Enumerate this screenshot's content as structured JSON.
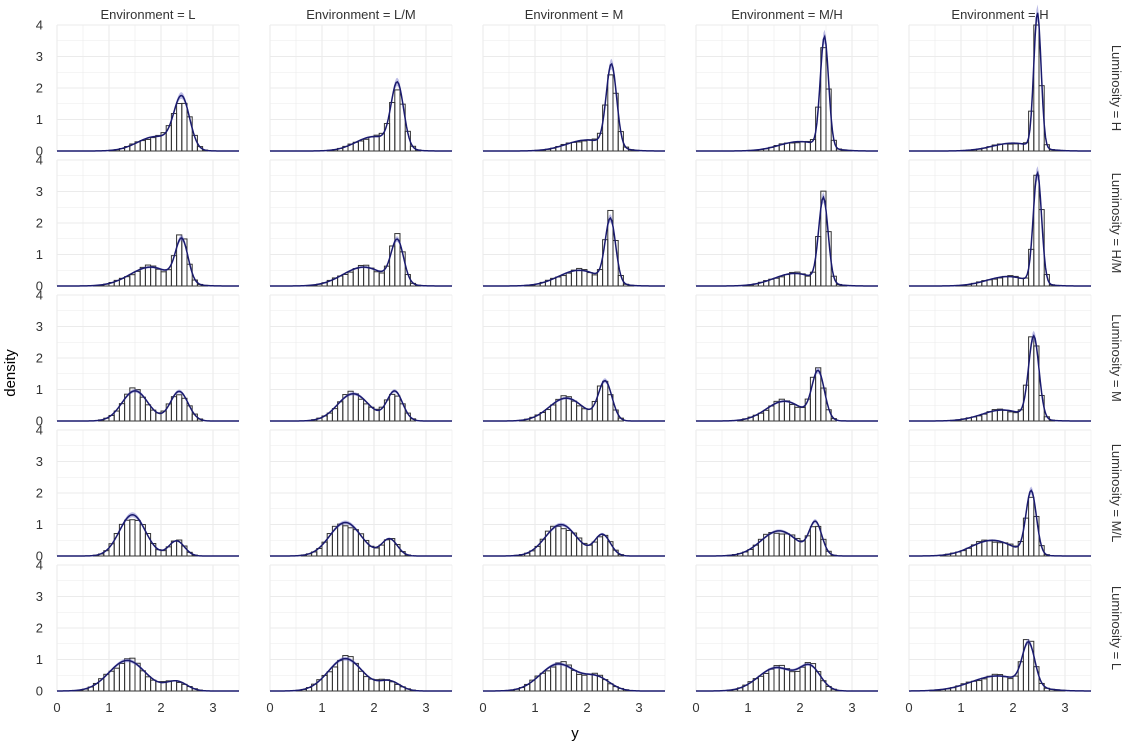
{
  "chart_data": {
    "type": "histogram-facet-grid",
    "xlabel": "y",
    "ylabel": "density",
    "xlim": [
      0,
      3.5
    ],
    "ylim": [
      0,
      4
    ],
    "x_ticks": [
      0,
      1,
      2,
      3
    ],
    "y_ticks": [
      0,
      1,
      2,
      3,
      4
    ],
    "column_labels": [
      "Environment = L",
      "Environment = L/M",
      "Environment = M",
      "Environment = M/H",
      "Environment = H"
    ],
    "row_labels": [
      "Luminosity = H",
      "Luminosity = H/M",
      "Luminosity = M",
      "Luminosity = M/L",
      "Luminosity = L"
    ],
    "grid": true,
    "bin_width": 0.1,
    "colors": {
      "bar_stroke": "#333333",
      "density_line": "#1a1a6e",
      "band_fill": "#6a6ac8",
      "panel_grid": "#ebebeb",
      "text": "#333333"
    },
    "panels": [
      {
        "row": 0,
        "col": 0,
        "components": [
          {
            "mu": 1.9,
            "sd": 0.35,
            "w": 0.4
          },
          {
            "mu": 2.4,
            "sd": 0.15,
            "w": 0.6
          }
        ]
      },
      {
        "row": 0,
        "col": 1,
        "components": [
          {
            "mu": 2.0,
            "sd": 0.35,
            "w": 0.4
          },
          {
            "mu": 2.45,
            "sd": 0.12,
            "w": 0.6
          }
        ]
      },
      {
        "row": 0,
        "col": 2,
        "components": [
          {
            "mu": 2.0,
            "sd": 0.4,
            "w": 0.35
          },
          {
            "mu": 2.47,
            "sd": 0.1,
            "w": 0.65
          }
        ]
      },
      {
        "row": 0,
        "col": 3,
        "components": [
          {
            "mu": 2.0,
            "sd": 0.4,
            "w": 0.3
          },
          {
            "mu": 2.47,
            "sd": 0.08,
            "w": 0.7
          }
        ]
      },
      {
        "row": 0,
        "col": 4,
        "components": [
          {
            "mu": 2.0,
            "sd": 0.4,
            "w": 0.25
          },
          {
            "mu": 2.47,
            "sd": 0.07,
            "w": 0.75
          }
        ]
      },
      {
        "row": 1,
        "col": 0,
        "components": [
          {
            "mu": 1.8,
            "sd": 0.4,
            "w": 0.6
          },
          {
            "mu": 2.4,
            "sd": 0.12,
            "w": 0.4
          }
        ]
      },
      {
        "row": 1,
        "col": 1,
        "components": [
          {
            "mu": 1.8,
            "sd": 0.4,
            "w": 0.6
          },
          {
            "mu": 2.45,
            "sd": 0.12,
            "w": 0.4
          }
        ]
      },
      {
        "row": 1,
        "col": 2,
        "components": [
          {
            "mu": 1.85,
            "sd": 0.4,
            "w": 0.5
          },
          {
            "mu": 2.45,
            "sd": 0.1,
            "w": 0.5
          }
        ]
      },
      {
        "row": 1,
        "col": 3,
        "components": [
          {
            "mu": 1.9,
            "sd": 0.4,
            "w": 0.4
          },
          {
            "mu": 2.45,
            "sd": 0.09,
            "w": 0.6
          }
        ]
      },
      {
        "row": 1,
        "col": 4,
        "components": [
          {
            "mu": 1.9,
            "sd": 0.4,
            "w": 0.3
          },
          {
            "mu": 2.47,
            "sd": 0.08,
            "w": 0.7
          }
        ]
      },
      {
        "row": 2,
        "col": 0,
        "components": [
          {
            "mu": 1.5,
            "sd": 0.25,
            "w": 0.6
          },
          {
            "mu": 2.35,
            "sd": 0.17,
            "w": 0.4
          }
        ]
      },
      {
        "row": 2,
        "col": 1,
        "components": [
          {
            "mu": 1.6,
            "sd": 0.3,
            "w": 0.65
          },
          {
            "mu": 2.4,
            "sd": 0.15,
            "w": 0.35
          }
        ]
      },
      {
        "row": 2,
        "col": 2,
        "components": [
          {
            "mu": 1.6,
            "sd": 0.33,
            "w": 0.6
          },
          {
            "mu": 2.35,
            "sd": 0.13,
            "w": 0.4
          }
        ]
      },
      {
        "row": 2,
        "col": 3,
        "components": [
          {
            "mu": 1.7,
            "sd": 0.35,
            "w": 0.55
          },
          {
            "mu": 2.35,
            "sd": 0.12,
            "w": 0.45
          }
        ]
      },
      {
        "row": 2,
        "col": 4,
        "components": [
          {
            "mu": 1.8,
            "sd": 0.4,
            "w": 0.35
          },
          {
            "mu": 2.4,
            "sd": 0.1,
            "w": 0.65
          }
        ]
      },
      {
        "row": 3,
        "col": 0,
        "components": [
          {
            "mu": 1.45,
            "sd": 0.25,
            "w": 0.82
          },
          {
            "mu": 2.3,
            "sd": 0.15,
            "w": 0.18
          }
        ]
      },
      {
        "row": 3,
        "col": 1,
        "components": [
          {
            "mu": 1.45,
            "sd": 0.3,
            "w": 0.8
          },
          {
            "mu": 2.3,
            "sd": 0.15,
            "w": 0.2
          }
        ]
      },
      {
        "row": 3,
        "col": 2,
        "components": [
          {
            "mu": 1.5,
            "sd": 0.3,
            "w": 0.75
          },
          {
            "mu": 2.3,
            "sd": 0.15,
            "w": 0.25
          }
        ]
      },
      {
        "row": 3,
        "col": 3,
        "components": [
          {
            "mu": 1.6,
            "sd": 0.35,
            "w": 0.7
          },
          {
            "mu": 2.3,
            "sd": 0.12,
            "w": 0.3
          }
        ]
      },
      {
        "row": 3,
        "col": 4,
        "components": [
          {
            "mu": 1.6,
            "sd": 0.4,
            "w": 0.5
          },
          {
            "mu": 2.35,
            "sd": 0.1,
            "w": 0.5
          }
        ]
      },
      {
        "row": 4,
        "col": 0,
        "components": [
          {
            "mu": 1.35,
            "sd": 0.35,
            "w": 0.85
          },
          {
            "mu": 2.3,
            "sd": 0.2,
            "w": 0.15
          }
        ]
      },
      {
        "row": 4,
        "col": 1,
        "components": [
          {
            "mu": 1.45,
            "sd": 0.33,
            "w": 0.85
          },
          {
            "mu": 2.3,
            "sd": 0.2,
            "w": 0.15
          }
        ]
      },
      {
        "row": 4,
        "col": 2,
        "components": [
          {
            "mu": 1.45,
            "sd": 0.35,
            "w": 0.75
          },
          {
            "mu": 2.2,
            "sd": 0.25,
            "w": 0.25
          }
        ]
      },
      {
        "row": 4,
        "col": 3,
        "components": [
          {
            "mu": 1.55,
            "sd": 0.35,
            "w": 0.65
          },
          {
            "mu": 2.2,
            "sd": 0.2,
            "w": 0.35
          }
        ]
      },
      {
        "row": 4,
        "col": 4,
        "components": [
          {
            "mu": 1.7,
            "sd": 0.5,
            "w": 0.6
          },
          {
            "mu": 2.3,
            "sd": 0.12,
            "w": 0.4
          }
        ]
      }
    ]
  }
}
